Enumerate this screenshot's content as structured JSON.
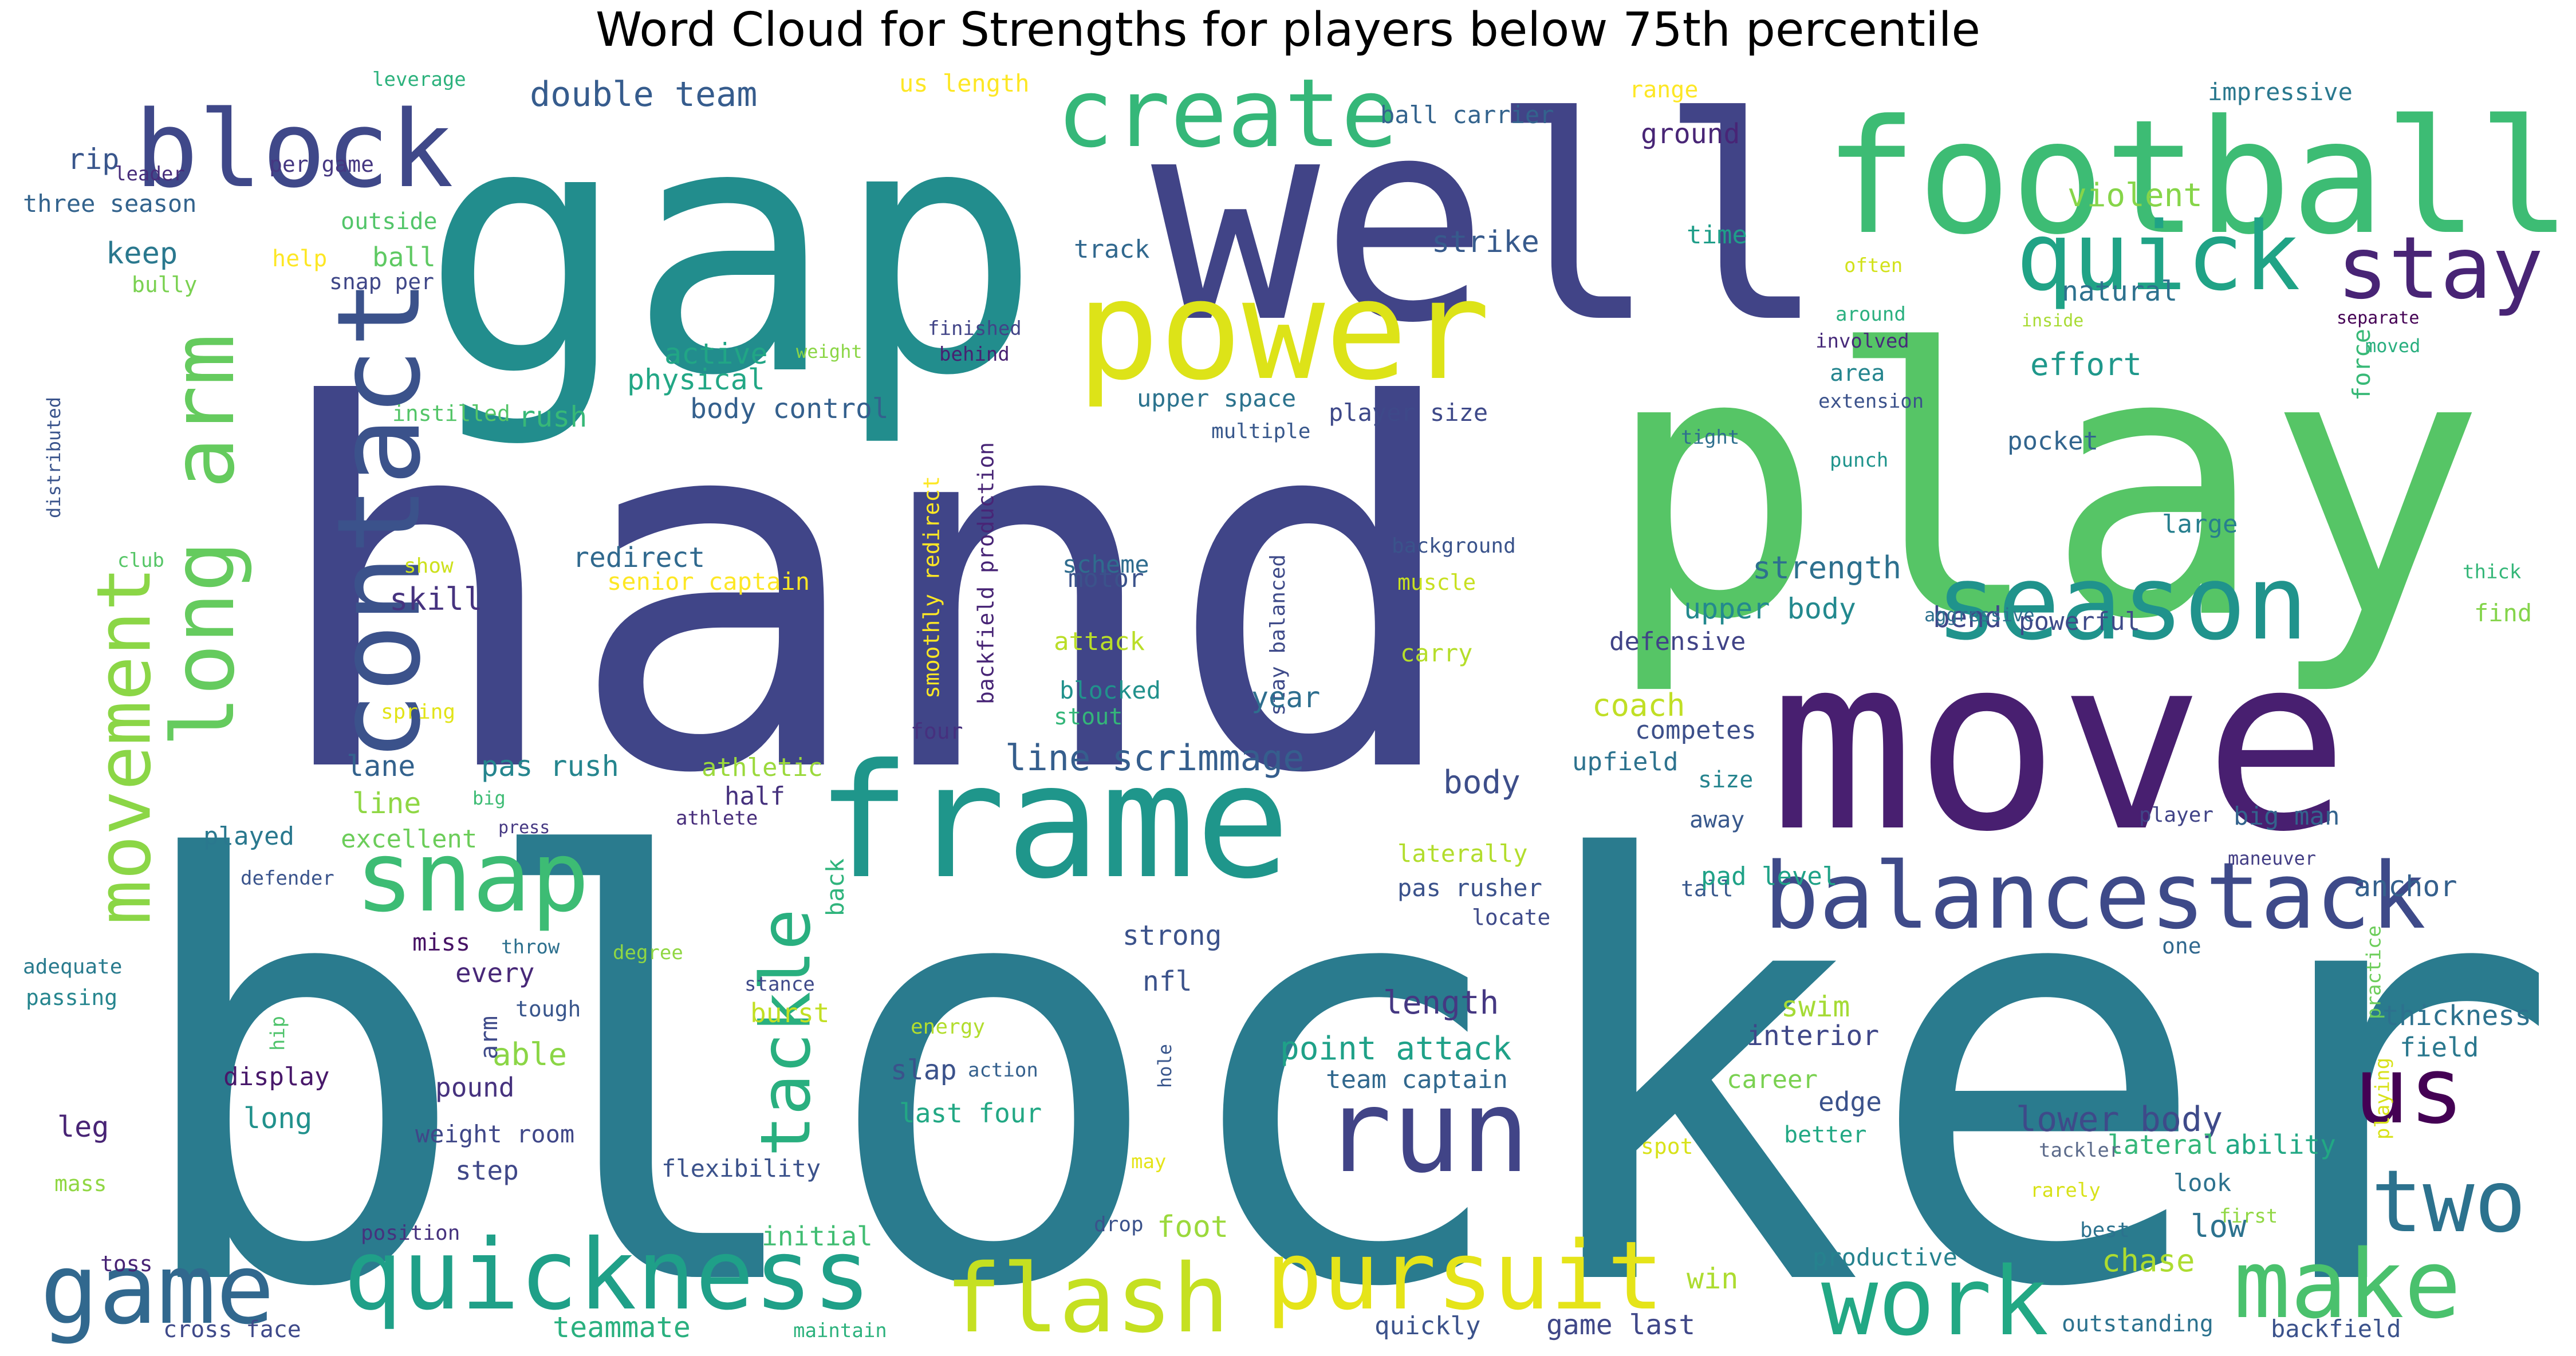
{
  "title": "Word Cloud for Strengths for players below 75th percentile",
  "words": [
    {
      "text": "blocker",
      "color": "#2a7b8e"
    },
    {
      "text": "hand",
      "color": "#404588"
    },
    {
      "text": "play",
      "color": "#56c566"
    },
    {
      "text": "gap",
      "color": "#228d8d"
    },
    {
      "text": "well",
      "color": "#414487"
    },
    {
      "text": "move",
      "color": "#481f70"
    },
    {
      "text": "frame",
      "color": "#1f968b"
    },
    {
      "text": "football",
      "color": "#3dbc74"
    },
    {
      "text": "power",
      "color": "#dde318"
    },
    {
      "text": "contact",
      "color": "#3b528b"
    },
    {
      "text": "block",
      "color": "#3f4889"
    },
    {
      "text": "create",
      "color": "#35b779"
    },
    {
      "text": "quick",
      "color": "#20a386"
    },
    {
      "text": "stay",
      "color": "#482475"
    },
    {
      "text": "season",
      "color": "#20938c"
    },
    {
      "text": "long arm",
      "color": "#65cb5e"
    },
    {
      "text": "movement",
      "color": "#8bd646"
    },
    {
      "text": "snap",
      "color": "#3dbc74"
    },
    {
      "text": "tackle",
      "color": "#29af7f"
    },
    {
      "text": "balancestack",
      "color": "#3e4a89"
    },
    {
      "text": "us",
      "color": "#440154"
    },
    {
      "text": "run",
      "color": "#414487"
    },
    {
      "text": "two",
      "color": "#2c728e"
    },
    {
      "text": "game",
      "color": "#31688e"
    },
    {
      "text": "quickness",
      "color": "#1fa088"
    },
    {
      "text": "flash",
      "color": "#c5e021"
    },
    {
      "text": "pursuit",
      "color": "#e5e419"
    },
    {
      "text": "work",
      "color": "#22a884"
    },
    {
      "text": "make",
      "color": "#4ac16d"
    },
    {
      "text": "double team",
      "color": "#365c8d"
    },
    {
      "text": "violent",
      "color": "#86d549"
    },
    {
      "text": "ground",
      "color": "#482576"
    },
    {
      "text": "ball carrier",
      "color": "#33638d"
    },
    {
      "text": "us length",
      "color": "#fde725"
    },
    {
      "text": "range",
      "color": "#fde725"
    },
    {
      "text": "impressive",
      "color": "#2a788e"
    },
    {
      "text": "leverage",
      "color": "#2db27d"
    },
    {
      "text": "rip",
      "color": "#39568c"
    },
    {
      "text": "leader",
      "color": "#472d7b"
    },
    {
      "text": "per game",
      "color": "#453781"
    },
    {
      "text": "three season",
      "color": "#33638d"
    },
    {
      "text": "outside",
      "color": "#52c569"
    },
    {
      "text": "keep",
      "color": "#2a788e"
    },
    {
      "text": "help",
      "color": "#fde725"
    },
    {
      "text": "ball",
      "color": "#5ec962"
    },
    {
      "text": "snap per",
      "color": "#3f4788"
    },
    {
      "text": "bully",
      "color": "#7ad151"
    },
    {
      "text": "track",
      "color": "#31688e"
    },
    {
      "text": "time",
      "color": "#1f9e89"
    },
    {
      "text": "often",
      "color": "#d2e21b"
    },
    {
      "text": "strike",
      "color": "#375a8c"
    },
    {
      "text": "natural",
      "color": "#2d718e"
    },
    {
      "text": "around",
      "color": "#2ab07f"
    },
    {
      "text": "involved",
      "color": "#472a7a"
    },
    {
      "text": "inside",
      "color": "#a8db34"
    },
    {
      "text": "separate",
      "color": "#440154"
    },
    {
      "text": "moved",
      "color": "#29af7f"
    },
    {
      "text": "force",
      "color": "#38b977"
    },
    {
      "text": "finished",
      "color": "#414487"
    },
    {
      "text": "behind",
      "color": "#482071"
    },
    {
      "text": "weight",
      "color": "#8bd646"
    },
    {
      "text": "effort",
      "color": "#1f988b"
    },
    {
      "text": "area",
      "color": "#25858e"
    },
    {
      "text": "extension",
      "color": "#3b528b"
    },
    {
      "text": "distributed",
      "color": "#3a548c"
    },
    {
      "text": "active",
      "color": "#21a685"
    },
    {
      "text": "physical",
      "color": "#22a785"
    },
    {
      "text": "upper space",
      "color": "#2c738e"
    },
    {
      "text": "player size",
      "color": "#3e4989"
    },
    {
      "text": "instilled",
      "color": "#54c568"
    },
    {
      "text": "rush",
      "color": "#37b878"
    },
    {
      "text": "body control",
      "color": "#34608d"
    },
    {
      "text": "multiple",
      "color": "#38588c"
    },
    {
      "text": "tight",
      "color": "#2e6f8e"
    },
    {
      "text": "punch",
      "color": "#1f948c"
    },
    {
      "text": "pocket",
      "color": "#32658e"
    },
    {
      "text": "club",
      "color": "#56c667"
    },
    {
      "text": "redirect",
      "color": "#30698e"
    },
    {
      "text": "senior captain",
      "color": "#fde725"
    },
    {
      "text": "backfield production",
      "color": "#482576"
    },
    {
      "text": "smoothly redirect",
      "color": "#fde725"
    },
    {
      "text": "stay balanced",
      "color": "#3e4a89"
    },
    {
      "text": "motor",
      "color": "#3b528b"
    },
    {
      "text": "scheme",
      "color": "#2f6c8e"
    },
    {
      "text": "background",
      "color": "#3a538b"
    },
    {
      "text": "muscle",
      "color": "#c8e020"
    },
    {
      "text": "large",
      "color": "#277f8e"
    },
    {
      "text": "thick",
      "color": "#35b779"
    },
    {
      "text": "show",
      "color": "#cde11d"
    },
    {
      "text": "skill",
      "color": "#46337f"
    },
    {
      "text": "strength",
      "color": "#2d708e"
    },
    {
      "text": "upper body",
      "color": "#23898e"
    },
    {
      "text": "bend",
      "color": "#3f4889"
    },
    {
      "text": "aggressive",
      "color": "#2d708e"
    },
    {
      "text": "powerful",
      "color": "#3e4a89"
    },
    {
      "text": "find",
      "color": "#84d44b"
    },
    {
      "text": "attack",
      "color": "#bade28"
    },
    {
      "text": "carry",
      "color": "#b5de2b"
    },
    {
      "text": "defensive",
      "color": "#404387"
    },
    {
      "text": "blocked",
      "color": "#21918c"
    },
    {
      "text": "stout",
      "color": "#34b679"
    },
    {
      "text": "spring",
      "color": "#e2e418"
    },
    {
      "text": "four",
      "color": "#46307e"
    },
    {
      "text": "year",
      "color": "#2e6e8e"
    },
    {
      "text": "coach",
      "color": "#c0df25"
    },
    {
      "text": "competes",
      "color": "#3c4f8a"
    },
    {
      "text": "line scrimmage",
      "color": "#355e8d"
    },
    {
      "text": "lane",
      "color": "#33628d"
    },
    {
      "text": "pas rush",
      "color": "#25858e"
    },
    {
      "text": "athletic",
      "color": "#9bd93c"
    },
    {
      "text": "body",
      "color": "#3d4e8a"
    },
    {
      "text": "upfield",
      "color": "#2c728e"
    },
    {
      "text": "size",
      "color": "#25848e"
    },
    {
      "text": "line",
      "color": "#8fd744"
    },
    {
      "text": "half",
      "color": "#46327e"
    },
    {
      "text": "big",
      "color": "#3dbc74"
    },
    {
      "text": "athlete",
      "color": "#472d7b"
    },
    {
      "text": "away",
      "color": "#38588c"
    },
    {
      "text": "big man",
      "color": "#33638d"
    },
    {
      "text": "player",
      "color": "#414487"
    },
    {
      "text": "played",
      "color": "#2a788e"
    },
    {
      "text": "excellent",
      "color": "#6ccd5a"
    },
    {
      "text": "back",
      "color": "#2fb47c"
    },
    {
      "text": "laterally",
      "color": "#b2dd2d"
    },
    {
      "text": "pas rusher",
      "color": "#3b528b"
    },
    {
      "text": "maneuver",
      "color": "#433e85"
    },
    {
      "text": "defender",
      "color": "#3a548c"
    },
    {
      "text": "press",
      "color": "#453882"
    },
    {
      "text": "locate",
      "color": "#3e4a89"
    },
    {
      "text": "tall",
      "color": "#38588c"
    },
    {
      "text": "pad level",
      "color": "#1fa287"
    },
    {
      "text": "anchor",
      "color": "#34608d"
    },
    {
      "text": "miss",
      "color": "#471365"
    },
    {
      "text": "throw",
      "color": "#2d708e"
    },
    {
      "text": "strong",
      "color": "#3b528b"
    },
    {
      "text": "one",
      "color": "#31688e"
    },
    {
      "text": "adequate",
      "color": "#297b8e"
    },
    {
      "text": "passing",
      "color": "#25858e"
    },
    {
      "text": "every",
      "color": "#482878"
    },
    {
      "text": "degree",
      "color": "#90d743"
    },
    {
      "text": "stance",
      "color": "#3e4989"
    },
    {
      "text": "length",
      "color": "#453882"
    },
    {
      "text": "swim",
      "color": "#a5db36"
    },
    {
      "text": "burst",
      "color": "#c2df23"
    },
    {
      "text": "nfl",
      "color": "#3b528b"
    },
    {
      "text": "energy",
      "color": "#b2dd2d"
    },
    {
      "text": "practice",
      "color": "#6ccd5a"
    },
    {
      "text": "thickness",
      "color": "#2d718e"
    },
    {
      "text": "hip",
      "color": "#4ec36b"
    },
    {
      "text": "arm",
      "color": "#3e4a89"
    },
    {
      "text": "tough",
      "color": "#39568c"
    },
    {
      "text": "able",
      "color": "#8bd646"
    },
    {
      "text": "point attack",
      "color": "#1fa188"
    },
    {
      "text": "interior",
      "color": "#3f4788"
    },
    {
      "text": "field",
      "color": "#2a788e"
    },
    {
      "text": "display",
      "color": "#48186a"
    },
    {
      "text": "pound",
      "color": "#46327e"
    },
    {
      "text": "slap",
      "color": "#3b528b"
    },
    {
      "text": "action",
      "color": "#34608d"
    },
    {
      "text": "hole",
      "color": "#39568c"
    },
    {
      "text": "team captain",
      "color": "#31688e"
    },
    {
      "text": "career",
      "color": "#7ad151"
    },
    {
      "text": "playing",
      "color": "#d8e219"
    },
    {
      "text": "edge",
      "color": "#3b528b"
    },
    {
      "text": "lower body",
      "color": "#3e4a89"
    },
    {
      "text": "leg",
      "color": "#482475"
    },
    {
      "text": "long",
      "color": "#21918c"
    },
    {
      "text": "last four",
      "color": "#22a884"
    },
    {
      "text": "better",
      "color": "#22a884"
    },
    {
      "text": "spot",
      "color": "#d8e219"
    },
    {
      "text": "weight room",
      "color": "#3f4788"
    },
    {
      "text": "lateral",
      "color": "#35b779"
    },
    {
      "text": "ability",
      "color": "#22a884"
    },
    {
      "text": "tackler",
      "color": "#5c6b8b"
    },
    {
      "text": "mass",
      "color": "#90d743"
    },
    {
      "text": "step",
      "color": "#3f4788"
    },
    {
      "text": "flexibility",
      "color": "#3b528b"
    },
    {
      "text": "may",
      "color": "#e5e419"
    },
    {
      "text": "look",
      "color": "#2c728e"
    },
    {
      "text": "rarely",
      "color": "#d8e219"
    },
    {
      "text": "position",
      "color": "#46327e"
    },
    {
      "text": "initial",
      "color": "#40bd72"
    },
    {
      "text": "drop",
      "color": "#3b528b"
    },
    {
      "text": "foot",
      "color": "#9bd93c"
    },
    {
      "text": "first",
      "color": "#90d743"
    },
    {
      "text": "low",
      "color": "#2c728e"
    },
    {
      "text": "toss",
      "color": "#482475"
    },
    {
      "text": "best",
      "color": "#2c728e"
    },
    {
      "text": "productive",
      "color": "#26828e"
    },
    {
      "text": "chase",
      "color": "#addc30"
    },
    {
      "text": "win",
      "color": "#addc30"
    },
    {
      "text": "cross face",
      "color": "#3e4989"
    },
    {
      "text": "teammate",
      "color": "#2ab07f"
    },
    {
      "text": "maintain",
      "color": "#2db27d"
    },
    {
      "text": "quickly",
      "color": "#3b528b"
    },
    {
      "text": "game last",
      "color": "#3f4788"
    },
    {
      "text": "outstanding",
      "color": "#2c728e"
    },
    {
      "text": "backfield",
      "color": "#3b528b"
    }
  ]
}
